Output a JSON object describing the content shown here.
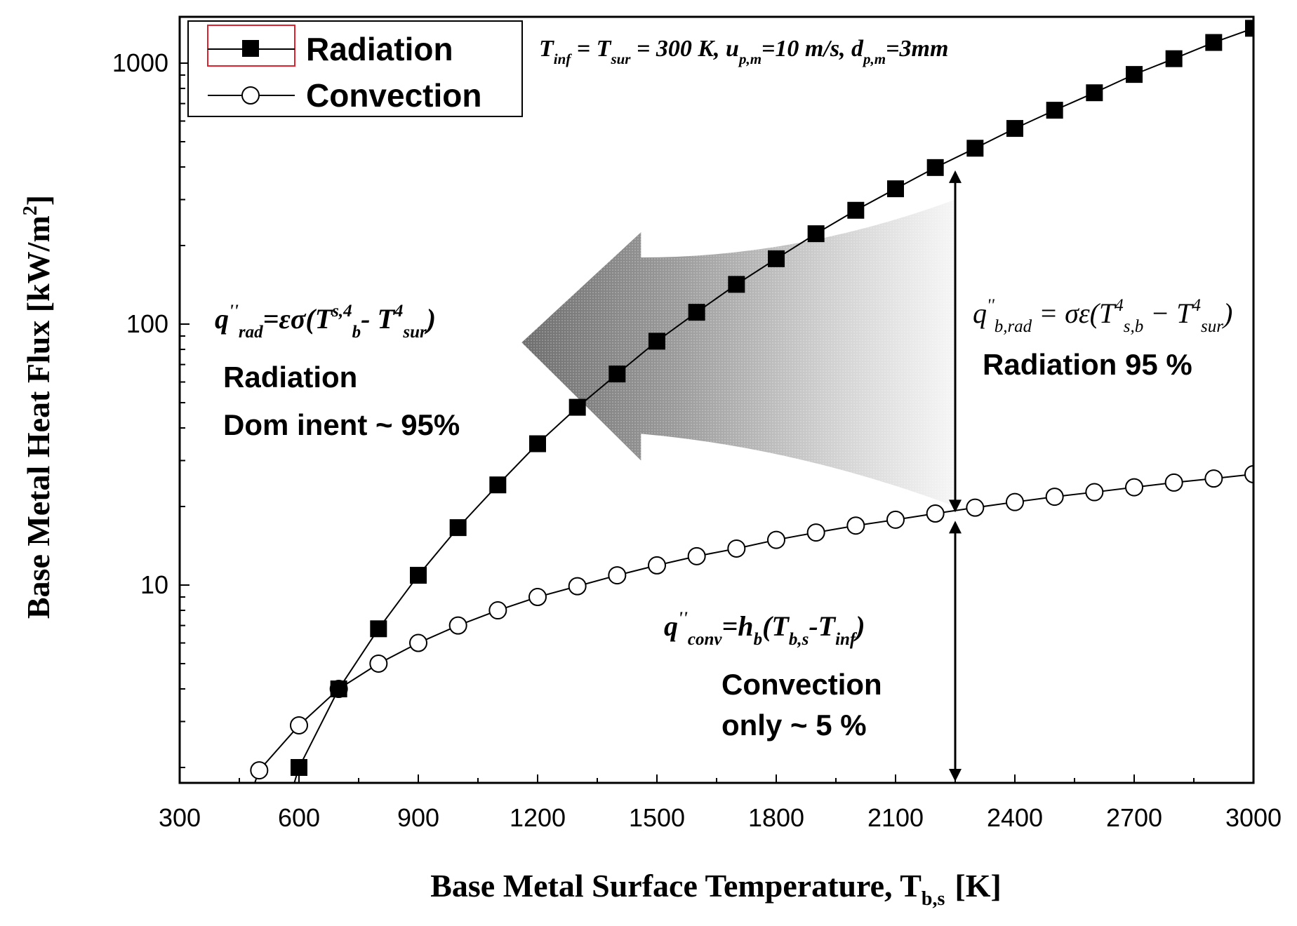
{
  "chart_data": {
    "type": "line",
    "x_scale": "linear",
    "y_scale": "log",
    "xlabel": "Base Metal Surface Temperature, T",
    "xlabel_sub": "b,s",
    "xlabel_unit": "[K]",
    "ylabel": "Base Metal Heat Flux [kW/m",
    "ylabel_sup": "2",
    "ylabel_close": "]",
    "xlim": [
      300,
      3000
    ],
    "ylim": [
      1.8,
      1400
    ],
    "xticks": [
      "300",
      "600",
      "900",
      "1200",
      "1500",
      "1800",
      "2100",
      "2400",
      "2700",
      "3000"
    ],
    "yticks": [
      "10",
      "100",
      "1000"
    ],
    "series": [
      {
        "name": "Radiation",
        "marker": "filled-square",
        "x": [
          600,
          700,
          800,
          900,
          1000,
          1100,
          1200,
          1300,
          1400,
          1500,
          1600,
          1700,
          1800,
          1900,
          2000,
          2100,
          2200,
          2300,
          2400,
          2500,
          2600,
          2700,
          2800,
          2900,
          3000
        ],
        "y": [
          2.0,
          4.0,
          6.8,
          10.9,
          16.6,
          24.2,
          34.8,
          48.0,
          64.4,
          86.0,
          111,
          142,
          178,
          222,
          273,
          330,
          398,
          472,
          562,
          660,
          770,
          905,
          1040,
          1200,
          1360
        ]
      },
      {
        "name": "Convection",
        "marker": "open-circle",
        "x": [
          500,
          600,
          700,
          800,
          900,
          1000,
          1100,
          1200,
          1300,
          1400,
          1500,
          1600,
          1700,
          1800,
          1900,
          2000,
          2100,
          2200,
          2300,
          2400,
          2500,
          2600,
          2700,
          2800,
          2900,
          3000
        ],
        "y": [
          1.95,
          2.9,
          4.0,
          5.0,
          6.0,
          7.0,
          8.0,
          9.0,
          9.9,
          10.9,
          11.9,
          12.9,
          13.8,
          14.9,
          15.9,
          16.9,
          17.8,
          18.8,
          19.8,
          20.8,
          21.8,
          22.7,
          23.7,
          24.7,
          25.6,
          26.6
        ]
      }
    ],
    "legend_position": "top-left",
    "condition_text": {
      "parts": [
        {
          "t": "T",
          "s": ""
        },
        {
          "t": "inf",
          "s": "sub"
        },
        {
          "t": " = T",
          "s": ""
        },
        {
          "t": "sur",
          "s": "sub"
        },
        {
          "t": " = 300 K, u",
          "s": ""
        },
        {
          "t": "p,m",
          "s": "sub"
        },
        {
          "t": "=10 m/s, d",
          "s": ""
        },
        {
          "t": "p,m",
          "s": "sub"
        },
        {
          "t": "=3mm",
          "s": ""
        }
      ]
    },
    "annotations": {
      "rad_eq_left": {
        "parts": [
          {
            "t": "q",
            "s": ""
          },
          {
            "t": "''",
            "s": "sup"
          },
          {
            "t": "rad",
            "s": "sub"
          },
          {
            "t": "=εσ(T",
            "s": ""
          },
          {
            "t": "s,4",
            "s": "sup"
          },
          {
            "t": "b",
            "s": "sub"
          },
          {
            "t": "- T",
            "s": ""
          },
          {
            "t": "4",
            "s": "sup"
          },
          {
            "t": "sur",
            "s": "sub"
          },
          {
            "t": ")",
            "s": ""
          }
        ]
      },
      "rad_dominant_line1": "Radiation",
      "rad_dominant_line2": "Dom inent ~ 95%",
      "rad_eq_right": {
        "parts": [
          {
            "t": "q",
            "s": ""
          },
          {
            "t": "''",
            "s": "sup"
          },
          {
            "t": "b,rad",
            "s": "sub"
          },
          {
            "t": " = σε(T",
            "s": ""
          },
          {
            "t": "4",
            "s": "sup"
          },
          {
            "t": "s,b",
            "s": "sub"
          },
          {
            "t": " − T",
            "s": ""
          },
          {
            "t": "4",
            "s": "sup"
          },
          {
            "t": "sur",
            "s": "sub"
          },
          {
            "t": ")",
            "s": ""
          }
        ]
      },
      "rad_percent": "Radiation 95 %",
      "conv_eq": {
        "parts": [
          {
            "t": "q",
            "s": ""
          },
          {
            "t": "''",
            "s": "sup"
          },
          {
            "t": "conv",
            "s": "sub"
          },
          {
            "t": "=h",
            "s": ""
          },
          {
            "t": "b",
            "s": "sub"
          },
          {
            "t": "(T",
            "s": ""
          },
          {
            "t": "b,s",
            "s": "sub"
          },
          {
            "t": "-T",
            "s": ""
          },
          {
            "t": "inf",
            "s": "sub"
          },
          {
            "t": ")",
            "s": ""
          }
        ]
      },
      "conv_line1": "Convection",
      "conv_line2": "only ~ 5 %",
      "arrow_x": 2250
    }
  }
}
